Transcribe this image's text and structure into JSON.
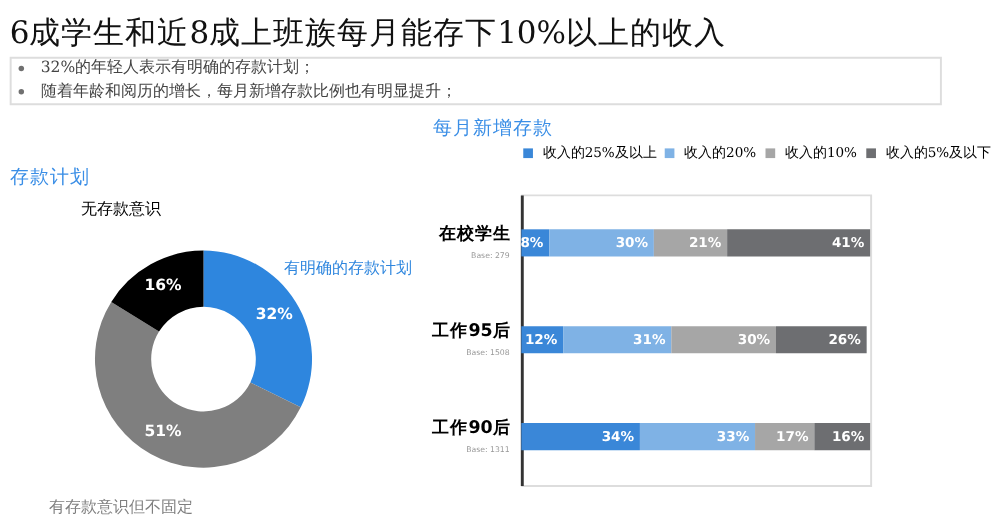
{
  "chart_data": [
    {
      "type": "other",
      "title": "6成学生和近8成上班族每月能存下10%以上的收入",
      "annotations": [
        "32%的年轻人表示有明确的存款计划；",
        "随着年龄和阅历的增长，每月新增存款比例也有明显提升；"
      ]
    },
    {
      "type": "donut",
      "title": "存款计划",
      "categories": [
        "有明确的存款计划",
        "有存款意识但不固定",
        "无存款意识"
      ],
      "values": [
        32,
        51,
        16
      ],
      "value_labels": [
        "32%",
        "51%",
        "16%"
      ],
      "colors": [
        "#2e86de",
        "#7f7f7f",
        "#000000"
      ],
      "legend": false
    },
    {
      "type": "bar",
      "title": "每月新增存款",
      "orientation": "horizontal",
      "stacked": true,
      "categories": [
        "在校学生",
        "工作95后",
        "工作90后"
      ],
      "legend": "top",
      "annotations": [
        "Base: 279",
        "Base: 1508",
        "Base: 1311"
      ],
      "series": [
        {
          "name": "收入的25%及以上",
          "color": "#3a87d8",
          "values": [
            8,
            12,
            34
          ],
          "value_labels": [
            "8%",
            "12%",
            "34%"
          ]
        },
        {
          "name": "收入的20%",
          "color": "#7fb2e5",
          "values": [
            30,
            31,
            33
          ],
          "value_labels": [
            "30%",
            "31%",
            "33%"
          ]
        },
        {
          "name": "收入的10%",
          "color": "#a6a6a6",
          "values": [
            21,
            30,
            17
          ],
          "value_labels": [
            "21%",
            "30%",
            "17%"
          ]
        },
        {
          "name": "收入的5%及以下",
          "color": "#6d6e71",
          "values": [
            41,
            26,
            16
          ],
          "value_labels": [
            "41%",
            "26%",
            "16%"
          ]
        }
      ]
    }
  ]
}
